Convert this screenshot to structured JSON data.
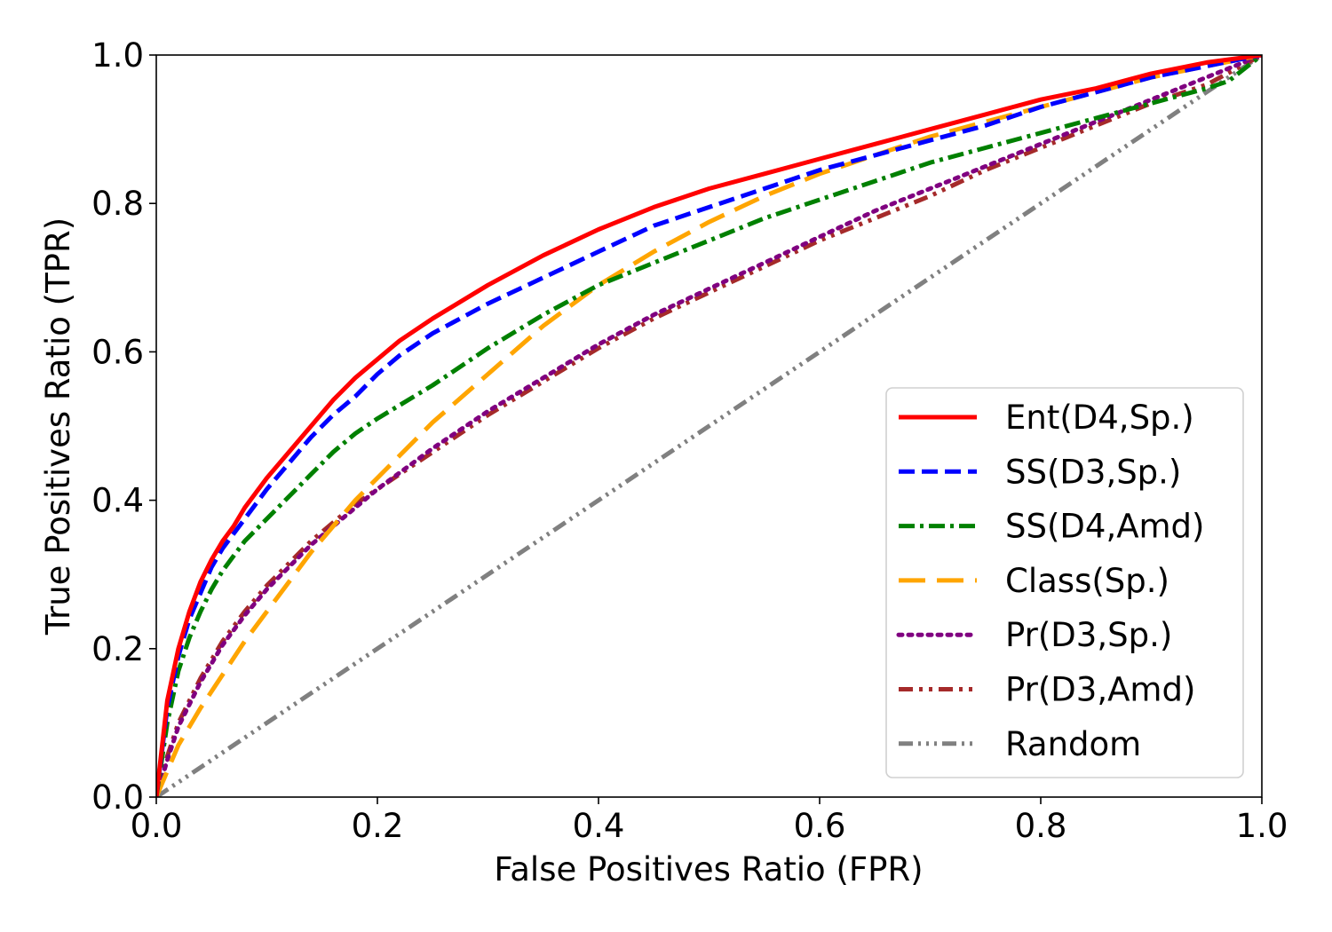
{
  "chart_data": {
    "type": "line",
    "title": "",
    "xlabel": "False Positives Ratio (FPR)",
    "ylabel": "True Positives Ratio (TPR)",
    "xlim": [
      0.0,
      1.0
    ],
    "ylim": [
      0.0,
      1.0
    ],
    "xticks": [
      "0.0",
      "0.2",
      "0.4",
      "0.6",
      "0.8",
      "1.0"
    ],
    "yticks": [
      "0.0",
      "0.2",
      "0.4",
      "0.6",
      "0.8",
      "1.0"
    ],
    "grid": false,
    "legend_position": "lower-right",
    "series": [
      {
        "name": "Ent(D4,Sp.)",
        "color": "#ff0000",
        "style": "solid",
        "points": [
          [
            0,
            0
          ],
          [
            0.01,
            0.13
          ],
          [
            0.02,
            0.2
          ],
          [
            0.03,
            0.25
          ],
          [
            0.04,
            0.29
          ],
          [
            0.05,
            0.32
          ],
          [
            0.06,
            0.345
          ],
          [
            0.07,
            0.365
          ],
          [
            0.08,
            0.39
          ],
          [
            0.1,
            0.43
          ],
          [
            0.12,
            0.465
          ],
          [
            0.14,
            0.5
          ],
          [
            0.16,
            0.535
          ],
          [
            0.18,
            0.565
          ],
          [
            0.2,
            0.59
          ],
          [
            0.22,
            0.615
          ],
          [
            0.25,
            0.645
          ],
          [
            0.3,
            0.69
          ],
          [
            0.35,
            0.73
          ],
          [
            0.4,
            0.765
          ],
          [
            0.45,
            0.795
          ],
          [
            0.5,
            0.82
          ],
          [
            0.55,
            0.84
          ],
          [
            0.6,
            0.86
          ],
          [
            0.65,
            0.88
          ],
          [
            0.7,
            0.9
          ],
          [
            0.75,
            0.92
          ],
          [
            0.8,
            0.94
          ],
          [
            0.85,
            0.955
          ],
          [
            0.9,
            0.975
          ],
          [
            0.95,
            0.99
          ],
          [
            1.0,
            1.0
          ]
        ]
      },
      {
        "name": "SS(D3,Sp.)",
        "color": "#0000ff",
        "style": "dashed",
        "points": [
          [
            0,
            0
          ],
          [
            0.01,
            0.12
          ],
          [
            0.02,
            0.19
          ],
          [
            0.03,
            0.24
          ],
          [
            0.04,
            0.275
          ],
          [
            0.05,
            0.31
          ],
          [
            0.06,
            0.335
          ],
          [
            0.07,
            0.355
          ],
          [
            0.08,
            0.375
          ],
          [
            0.1,
            0.415
          ],
          [
            0.12,
            0.45
          ],
          [
            0.14,
            0.485
          ],
          [
            0.16,
            0.515
          ],
          [
            0.18,
            0.54
          ],
          [
            0.2,
            0.57
          ],
          [
            0.22,
            0.595
          ],
          [
            0.25,
            0.625
          ],
          [
            0.3,
            0.665
          ],
          [
            0.35,
            0.7
          ],
          [
            0.4,
            0.735
          ],
          [
            0.45,
            0.77
          ],
          [
            0.5,
            0.795
          ],
          [
            0.55,
            0.82
          ],
          [
            0.6,
            0.845
          ],
          [
            0.65,
            0.865
          ],
          [
            0.7,
            0.885
          ],
          [
            0.75,
            0.905
          ],
          [
            0.8,
            0.93
          ],
          [
            0.85,
            0.95
          ],
          [
            0.9,
            0.97
          ],
          [
            0.95,
            0.985
          ],
          [
            1.0,
            1.0
          ]
        ]
      },
      {
        "name": "SS(D4,Amd)",
        "color": "#008000",
        "style": "dashdot",
        "points": [
          [
            0,
            0
          ],
          [
            0.01,
            0.1
          ],
          [
            0.02,
            0.17
          ],
          [
            0.03,
            0.215
          ],
          [
            0.04,
            0.25
          ],
          [
            0.05,
            0.28
          ],
          [
            0.06,
            0.305
          ],
          [
            0.07,
            0.325
          ],
          [
            0.08,
            0.345
          ],
          [
            0.1,
            0.375
          ],
          [
            0.12,
            0.405
          ],
          [
            0.14,
            0.435
          ],
          [
            0.16,
            0.465
          ],
          [
            0.18,
            0.49
          ],
          [
            0.2,
            0.51
          ],
          [
            0.25,
            0.555
          ],
          [
            0.3,
            0.605
          ],
          [
            0.35,
            0.65
          ],
          [
            0.4,
            0.69
          ],
          [
            0.45,
            0.72
          ],
          [
            0.5,
            0.75
          ],
          [
            0.55,
            0.78
          ],
          [
            0.6,
            0.805
          ],
          [
            0.65,
            0.83
          ],
          [
            0.7,
            0.855
          ],
          [
            0.75,
            0.875
          ],
          [
            0.8,
            0.895
          ],
          [
            0.85,
            0.915
          ],
          [
            0.9,
            0.935
          ],
          [
            0.95,
            0.955
          ],
          [
            0.97,
            0.965
          ],
          [
            1.0,
            1.0
          ]
        ]
      },
      {
        "name": "Class(Sp.)",
        "color": "#ffa500",
        "style": "longdash",
        "points": [
          [
            0,
            0
          ],
          [
            0.01,
            0.035
          ],
          [
            0.02,
            0.07
          ],
          [
            0.04,
            0.12
          ],
          [
            0.06,
            0.165
          ],
          [
            0.08,
            0.21
          ],
          [
            0.1,
            0.25
          ],
          [
            0.12,
            0.29
          ],
          [
            0.14,
            0.33
          ],
          [
            0.16,
            0.365
          ],
          [
            0.18,
            0.4
          ],
          [
            0.2,
            0.43
          ],
          [
            0.25,
            0.505
          ],
          [
            0.3,
            0.57
          ],
          [
            0.35,
            0.635
          ],
          [
            0.4,
            0.69
          ],
          [
            0.45,
            0.735
          ],
          [
            0.5,
            0.775
          ],
          [
            0.55,
            0.81
          ],
          [
            0.6,
            0.84
          ],
          [
            0.65,
            0.865
          ],
          [
            0.7,
            0.89
          ],
          [
            0.75,
            0.91
          ],
          [
            0.8,
            0.93
          ],
          [
            0.85,
            0.95
          ],
          [
            0.9,
            0.97
          ],
          [
            0.95,
            0.985
          ],
          [
            1.0,
            1.0
          ]
        ]
      },
      {
        "name": "Pr(D3,Sp.)",
        "color": "#800080",
        "style": "dotted",
        "points": [
          [
            0,
            0
          ],
          [
            0.01,
            0.05
          ],
          [
            0.02,
            0.095
          ],
          [
            0.04,
            0.155
          ],
          [
            0.06,
            0.205
          ],
          [
            0.08,
            0.245
          ],
          [
            0.1,
            0.28
          ],
          [
            0.12,
            0.31
          ],
          [
            0.14,
            0.34
          ],
          [
            0.16,
            0.365
          ],
          [
            0.18,
            0.39
          ],
          [
            0.2,
            0.415
          ],
          [
            0.25,
            0.47
          ],
          [
            0.3,
            0.52
          ],
          [
            0.35,
            0.565
          ],
          [
            0.4,
            0.61
          ],
          [
            0.45,
            0.65
          ],
          [
            0.5,
            0.685
          ],
          [
            0.55,
            0.72
          ],
          [
            0.6,
            0.755
          ],
          [
            0.65,
            0.79
          ],
          [
            0.7,
            0.82
          ],
          [
            0.75,
            0.85
          ],
          [
            0.8,
            0.88
          ],
          [
            0.85,
            0.91
          ],
          [
            0.9,
            0.94
          ],
          [
            0.95,
            0.97
          ],
          [
            1.0,
            1.0
          ]
        ]
      },
      {
        "name": "Pr(D3,Amd)",
        "color": "#a52a2a",
        "style": "dashdotdot",
        "points": [
          [
            0,
            0
          ],
          [
            0.01,
            0.055
          ],
          [
            0.02,
            0.1
          ],
          [
            0.04,
            0.16
          ],
          [
            0.06,
            0.21
          ],
          [
            0.08,
            0.25
          ],
          [
            0.1,
            0.285
          ],
          [
            0.12,
            0.315
          ],
          [
            0.14,
            0.345
          ],
          [
            0.16,
            0.37
          ],
          [
            0.18,
            0.395
          ],
          [
            0.2,
            0.415
          ],
          [
            0.25,
            0.465
          ],
          [
            0.3,
            0.515
          ],
          [
            0.35,
            0.56
          ],
          [
            0.4,
            0.605
          ],
          [
            0.45,
            0.645
          ],
          [
            0.5,
            0.68
          ],
          [
            0.55,
            0.715
          ],
          [
            0.6,
            0.75
          ],
          [
            0.65,
            0.78
          ],
          [
            0.7,
            0.81
          ],
          [
            0.75,
            0.845
          ],
          [
            0.8,
            0.875
          ],
          [
            0.85,
            0.905
          ],
          [
            0.9,
            0.935
          ],
          [
            0.95,
            0.96
          ],
          [
            1.0,
            1.0
          ]
        ]
      },
      {
        "name": "Random",
        "color": "#808080",
        "style": "dashdotdotdot",
        "points": [
          [
            0,
            0
          ],
          [
            1.0,
            1.0
          ]
        ]
      }
    ]
  }
}
